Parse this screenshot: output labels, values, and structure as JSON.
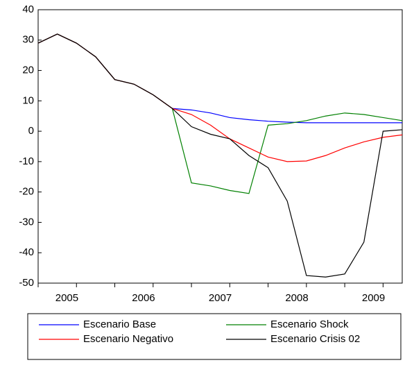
{
  "chart_data": {
    "type": "line",
    "categories": [
      "2005",
      null,
      null,
      null,
      "2006",
      null,
      null,
      null,
      "2007",
      null,
      null,
      null,
      "2008",
      null,
      null,
      null,
      "2009",
      null,
      null,
      null
    ],
    "ylim": [
      -50,
      40
    ],
    "yticks": [
      -50,
      -40,
      -30,
      -20,
      -10,
      0,
      10,
      20,
      30,
      40
    ],
    "series": [
      {
        "name": "Escenario Base",
        "color": "#0000ff",
        "values": [
          29,
          32,
          29,
          24.5,
          17,
          15.5,
          12,
          7.5,
          7,
          6,
          4.5,
          3.8,
          3.3,
          3,
          2.8,
          2.8,
          2.8,
          2.8,
          2.8,
          2.8
        ]
      },
      {
        "name": "Escenario Shock",
        "color": "#008000",
        "values": [
          29,
          32,
          29,
          24.5,
          17,
          15.5,
          12,
          7.5,
          -17,
          -18,
          -19.5,
          -20.5,
          2,
          2.5,
          3.5,
          5,
          6,
          5.5,
          4.5,
          3.5
        ]
      },
      {
        "name": "Escenario Negativo",
        "color": "#ff0000",
        "values": [
          29,
          32,
          29,
          24.5,
          17,
          15.5,
          12,
          7.5,
          5.5,
          2,
          -2.5,
          -5.5,
          -8.5,
          -10,
          -9.8,
          -8,
          -5.5,
          -3.5,
          -2,
          -1.2
        ]
      },
      {
        "name": "Escenario Crisis 02",
        "color": "#000000",
        "values": [
          29,
          32,
          29,
          24.5,
          17,
          15.5,
          12,
          7.5,
          1.5,
          -1,
          -2.5,
          -8,
          -12,
          -23,
          -47.5,
          -48,
          -47,
          -36.5,
          0,
          0.5
        ]
      }
    ]
  }
}
